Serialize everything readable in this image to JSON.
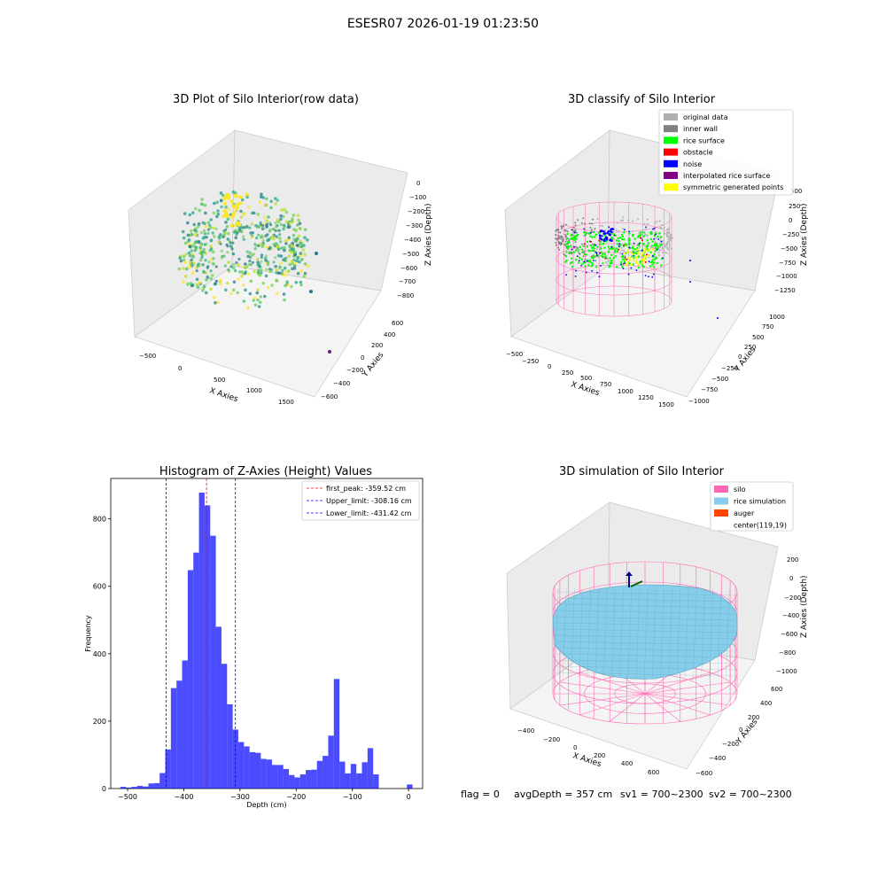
{
  "figure": {
    "suptitle": "ESESR07 2026-01-19 01:23:50",
    "status": {
      "flag": "flag = 0",
      "avg_depth": "avgDepth = 357 cm",
      "sv1": "sv1 = 700~2300",
      "sv2": "sv2 = 700~2300"
    }
  },
  "colors": {
    "viridis_low": "#21918c",
    "viridis_mid": "#5ec962",
    "viridis_high": "#fde725",
    "hist_bar": "#0000ff",
    "peak_line": "#ff0000",
    "limit_line": "#0000ff",
    "silo_wire": "#ff69b4",
    "rice_sim": "#87ceeb",
    "auger": "#ff4500",
    "grey_data": "#b0b0b0",
    "inner_wall": "#808080",
    "rice_surface": "#00ff00",
    "obstacle": "#ff0000",
    "noise": "#0000ff",
    "interp_surface": "#800080",
    "sym_points": "#ffff00"
  },
  "chart_data": [
    {
      "type": "scatter",
      "projection": "3d",
      "title": "3D Plot of Silo Interior(row data)",
      "xlabel": "X Axies",
      "ylabel": "Y Axies",
      "zlabel": "Z Axies (Depth)",
      "x_ticks": [
        "−500",
        "0",
        "500",
        "1000",
        "1500"
      ],
      "y_ticks": [
        "600",
        "400",
        "200",
        "0",
        "−200",
        "−400",
        "−600"
      ],
      "z_ticks": [
        "0",
        "−100",
        "−200",
        "−300",
        "−400",
        "−500",
        "−600",
        "−700",
        "−800"
      ],
      "grid": true
    },
    {
      "type": "scatter",
      "projection": "3d",
      "title": "3D classify of Silo Interior",
      "xlabel": "X Axies",
      "ylabel": "Y Axies",
      "zlabel": "Z Axies (Depth)",
      "x_ticks": [
        "−500",
        "−250",
        "0",
        "250",
        "500",
        "750",
        "1000",
        "1250",
        "1500"
      ],
      "y_ticks": [
        "1000",
        "750",
        "500",
        "250",
        "0",
        "−250",
        "−500",
        "−750",
        "−1000"
      ],
      "z_ticks": [
        "500",
        "250",
        "0",
        "−250",
        "−500",
        "−750",
        "−1000",
        "−1250"
      ],
      "legend_placement": "upper-right",
      "legend": [
        {
          "label": "original data",
          "color": "#b0b0b0"
        },
        {
          "label": "inner wall",
          "color": "#808080"
        },
        {
          "label": "rice surface",
          "color": "#00ff00"
        },
        {
          "label": "obstacle",
          "color": "#ff0000"
        },
        {
          "label": "noise",
          "color": "#0000ff"
        },
        {
          "label": "interpolated rice surface",
          "color": "#800080"
        },
        {
          "label": "symmetric generated points",
          "color": "#ffff00"
        }
      ],
      "grid": true
    },
    {
      "type": "bar",
      "title": "Histogram of Z-Axies (Height) Values",
      "xlabel": "Depth (cm)",
      "ylabel": "Frequency",
      "xlim": [
        -530,
        25
      ],
      "ylim": [
        0,
        920
      ],
      "x_ticks": [
        -500,
        -400,
        -300,
        -200,
        -100,
        0
      ],
      "x_tick_labels": [
        "−500",
        "−400",
        "−300",
        "−200",
        "−100",
        "0"
      ],
      "y_ticks": [
        0,
        200,
        400,
        600,
        800
      ],
      "bin_edges": [
        -513,
        -503,
        -493,
        -483,
        -473,
        -463,
        -453,
        -443,
        -433,
        -423,
        -413,
        -403,
        -393,
        -383,
        -373,
        -363,
        -353,
        -343,
        -333,
        -323,
        -313,
        -303,
        -293,
        -283,
        -273,
        -263,
        -253,
        -243,
        -233,
        -223,
        -213,
        -203,
        -193,
        -183,
        -173,
        -163,
        -153,
        -143,
        -133,
        -123,
        -113,
        -103,
        -93,
        -83,
        -73,
        -63,
        -53,
        -43,
        -33,
        -23,
        -13,
        -3,
        7
      ],
      "values": [
        5,
        3,
        5,
        8,
        6,
        15,
        16,
        46,
        116,
        298,
        320,
        380,
        648,
        700,
        878,
        840,
        750,
        480,
        370,
        250,
        175,
        138,
        125,
        108,
        106,
        88,
        86,
        70,
        70,
        58,
        40,
        33,
        42,
        55,
        56,
        82,
        97,
        157,
        325,
        80,
        45,
        73,
        45,
        78,
        120,
        42,
        0,
        0,
        0,
        0,
        0,
        12
      ],
      "lines": [
        {
          "label": "first_peak: -359.52 cm",
          "x": -359.52,
          "color": "#ff0000"
        },
        {
          "label": "Upper_limit: -308.16 cm",
          "x": -308.16,
          "color": "#0000ff"
        },
        {
          "label": "Lower_limit: -431.42 cm",
          "x": -431.42,
          "color": "#0000ff"
        }
      ],
      "legend_placement": "upper-right"
    },
    {
      "type": "surface",
      "projection": "3d",
      "title": "3D simulation of Silo Interior",
      "xlabel": "X Axies",
      "ylabel": "Y Axies",
      "zlabel": "Z Axies (Depth)",
      "x_ticks": [
        "−400",
        "−200",
        "0",
        "200",
        "400",
        "600"
      ],
      "y_ticks": [
        "600",
        "400",
        "200",
        "0",
        "−200",
        "−400",
        "−600"
      ],
      "z_ticks": [
        "200",
        "0",
        "−200",
        "−400",
        "−600",
        "−800",
        "−1000"
      ],
      "legend_placement": "upper-right",
      "legend": [
        {
          "label": "silo",
          "color": "#ff69b4"
        },
        {
          "label": "rice simulation",
          "color": "#87ceeb"
        },
        {
          "label": "auger",
          "color": "#ff4500"
        },
        {
          "label": "center(119,19)",
          "color": "none"
        }
      ],
      "grid": true
    }
  ]
}
